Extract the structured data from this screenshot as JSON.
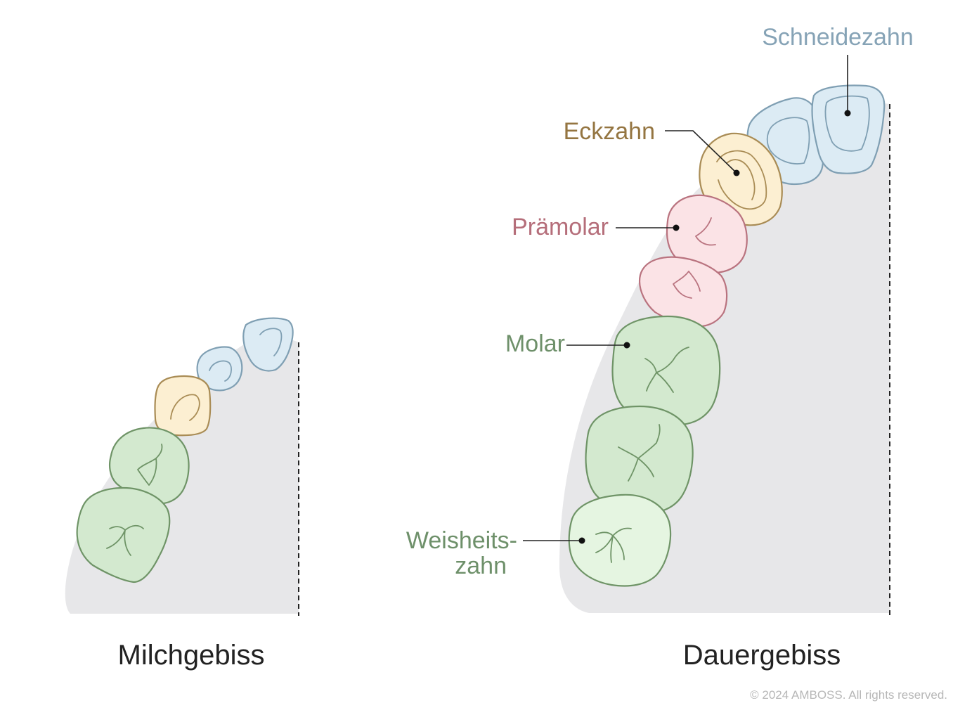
{
  "panels": {
    "primary": {
      "title": "Milchgebiss"
    },
    "permanent": {
      "title": "Dauergebiss"
    }
  },
  "labels": {
    "schneidezahn": "Schneidezahn",
    "eckzahn": "Eckzahn",
    "praemolar": "Prämolar",
    "molar": "Molar",
    "weisheitszahn_line1": "Weisheits-",
    "weisheitszahn_line2": "zahn"
  },
  "copyright": "© 2024 AMBOSS. All rights reserved.",
  "colors": {
    "incisor_fill": "#dcebf4",
    "incisor_stroke": "#7f9fb3",
    "canine_fill": "#fcefd2",
    "canine_stroke": "#a98c55",
    "premolar_fill": "#fbe3e6",
    "premolar_stroke": "#b9737f",
    "molar_fill": "#d3e9cf",
    "molar_stroke": "#6f9467",
    "wisdom_fill": "#e5f5e1",
    "gum": "#e7e7e9",
    "label_incisor": "#86a3b6",
    "label_canine": "#947541",
    "label_premolar": "#b56e7a",
    "label_molar": "#6e906a"
  }
}
